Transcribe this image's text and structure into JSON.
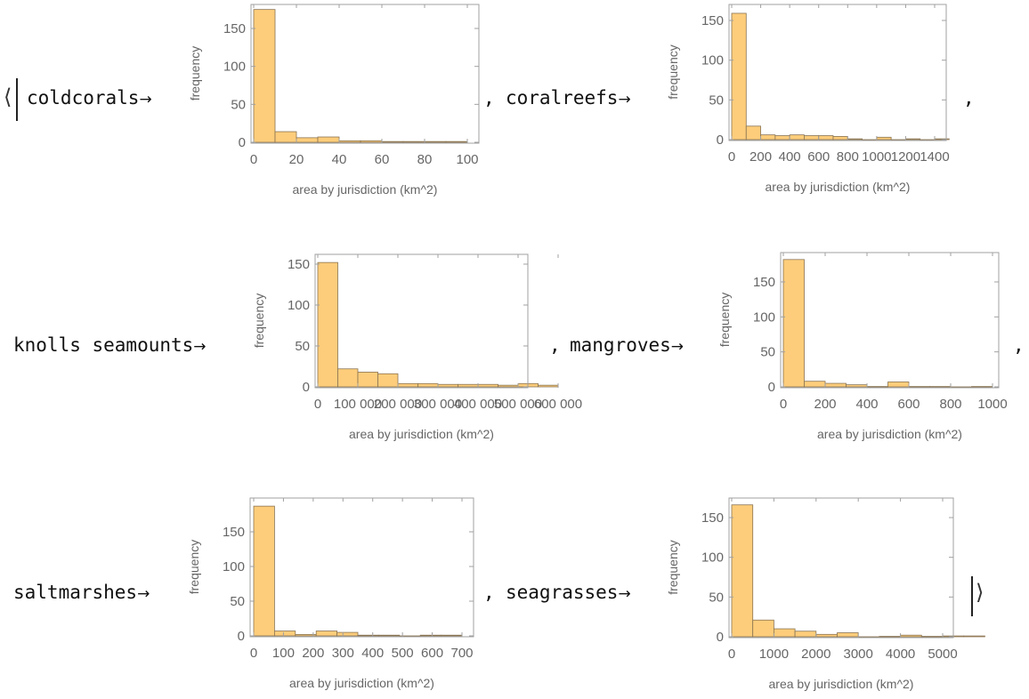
{
  "association": {
    "open_bracket": "⟨",
    "close_bracket": "⟩",
    "arrow": "→",
    "separator": ",",
    "keys": [
      "coldcorals",
      "coralreefs",
      "knolls seamounts",
      "mangroves",
      "saltmarshes",
      "seagrasses"
    ]
  },
  "colors": {
    "bar_fill": "#FDCD7B",
    "bar_stroke": "#8A7452",
    "frame": "#A0A0A0",
    "tick_text": "#666666"
  },
  "chart_data": [
    {
      "type": "bar",
      "key": "coldcorals",
      "xlabel": "area by jurisdiction (km^2)",
      "ylabel": "frequency",
      "bin_start": 0,
      "bin_width": 10,
      "counts": [
        175,
        14,
        6,
        7,
        2,
        2,
        1,
        1,
        1,
        1
      ],
      "x_ticks": [
        0,
        20,
        40,
        60,
        80,
        100
      ],
      "x_tick_labels": [
        "0",
        "20",
        "40",
        "60",
        "80",
        "100"
      ],
      "y_ticks": [
        0,
        50,
        100,
        150
      ],
      "y_tick_labels": [
        "0",
        "50",
        "100",
        "150"
      ]
    },
    {
      "type": "bar",
      "key": "coralreefs",
      "xlabel": "area by jurisdiction (km^2)",
      "ylabel": "frequency",
      "bin_start": 0,
      "bin_width": 100,
      "counts": [
        159,
        17,
        6,
        5,
        6,
        5,
        5,
        4,
        1,
        0,
        3,
        0,
        1,
        0,
        1
      ],
      "x_ticks": [
        0,
        200,
        400,
        600,
        800,
        1000,
        1200,
        1400
      ],
      "x_tick_labels": [
        "0",
        "200",
        "400",
        "600",
        "800",
        "1000",
        "1200",
        "1400"
      ],
      "y_ticks": [
        0,
        50,
        100,
        150
      ],
      "y_tick_labels": [
        "0",
        "50",
        "100",
        "150"
      ]
    },
    {
      "type": "bar",
      "key": "knolls seamounts",
      "xlabel": "area by jurisdiction (km^2)",
      "ylabel": "frequency",
      "bin_start": 0,
      "bin_width": 50000,
      "counts": [
        152,
        22,
        18,
        16,
        4,
        4,
        3,
        3,
        3,
        2,
        4,
        2
      ],
      "x_ticks": [
        0,
        100000,
        200000,
        300000,
        400000,
        500000,
        600000
      ],
      "x_tick_labels": [
        "0",
        "100 000",
        "200 000",
        "300 000",
        "400 000",
        "500 000",
        "600 000"
      ],
      "y_ticks": [
        0,
        50,
        100,
        150
      ],
      "y_tick_labels": [
        "0",
        "50",
        "100",
        "150"
      ]
    },
    {
      "type": "bar",
      "key": "mangroves",
      "xlabel": "area by jurisdiction (km^2)",
      "ylabel": "frequency",
      "bin_start": 0,
      "bin_width": 100,
      "counts": [
        182,
        8,
        5,
        3,
        0.5,
        7,
        0.5,
        0.5,
        0,
        0.5
      ],
      "x_ticks": [
        0,
        200,
        400,
        600,
        800,
        1000
      ],
      "x_tick_labels": [
        "0",
        "200",
        "400",
        "600",
        "800",
        "1000"
      ],
      "y_ticks": [
        0,
        50,
        100,
        150
      ],
      "y_tick_labels": [
        "0",
        "50",
        "100",
        "150"
      ]
    },
    {
      "type": "bar",
      "key": "saltmarshes",
      "xlabel": "area by jurisdiction (km^2)",
      "ylabel": "frequency",
      "bin_start": 0,
      "bin_width": 70,
      "counts": [
        187,
        7,
        2,
        7,
        5,
        1,
        1,
        0,
        1,
        1
      ],
      "x_ticks": [
        0,
        100,
        200,
        300,
        400,
        500,
        600,
        700
      ],
      "x_tick_labels": [
        "0",
        "100",
        "200",
        "300",
        "400",
        "500",
        "600",
        "700"
      ],
      "y_ticks": [
        0,
        50,
        100,
        150
      ],
      "y_tick_labels": [
        "0",
        "50",
        "100",
        "150"
      ]
    },
    {
      "type": "bar",
      "key": "seagrasses",
      "xlabel": "area by jurisdiction (km^2)",
      "ylabel": "frequency",
      "bin_start": 0,
      "bin_width": 500,
      "counts": [
        166,
        21,
        10,
        7,
        3,
        5,
        0,
        0.5,
        2,
        0.5,
        1,
        1
      ],
      "x_ticks": [
        0,
        1000,
        2000,
        3000,
        4000,
        5000
      ],
      "x_tick_labels": [
        "0",
        "1000",
        "2000",
        "3000",
        "4000",
        "5000"
      ],
      "y_ticks": [
        0,
        50,
        100,
        150
      ],
      "y_tick_labels": [
        "0",
        "50",
        "100",
        "150"
      ]
    }
  ]
}
